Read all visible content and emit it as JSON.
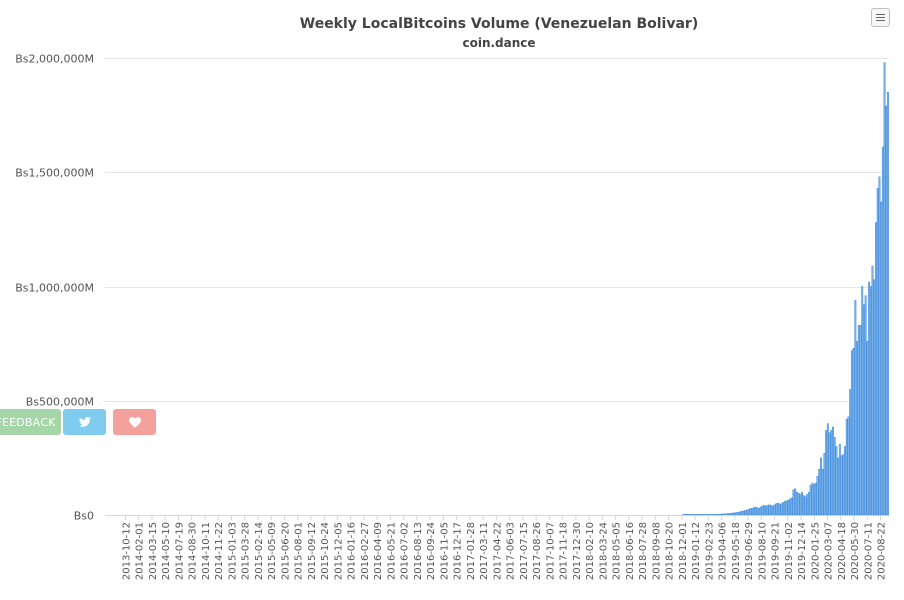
{
  "chart_data": {
    "type": "bar",
    "title": "Weekly LocalBitcoins Volume (Venezuelan Bolivar)",
    "subtitle": "coin.dance",
    "xlabel": "",
    "ylabel": "",
    "ylim": [
      0,
      2000000000
    ],
    "y_ticks": [
      {
        "value": 0,
        "label": "Bs0"
      },
      {
        "value": 500000000,
        "label": "Bs500,000M"
      },
      {
        "value": 1000000000,
        "label": "Bs1,000,000M"
      },
      {
        "value": 1500000000,
        "label": "Bs1,500,000M"
      },
      {
        "value": 2000000000,
        "label": "Bs2,000,000M"
      }
    ],
    "x_tick_labels": [
      "2013-10-12",
      "2014-02-01",
      "2014-03-15",
      "2014-05-10",
      "2014-07-19",
      "2014-08-30",
      "2014-10-11",
      "2014-11-22",
      "2015-01-03",
      "2015-03-28",
      "2015-02-14",
      "2015-05-09",
      "2015-06-20",
      "2015-08-01",
      "2015-09-12",
      "2015-10-24",
      "2015-12-05",
      "2016-01-16",
      "2016-02-27",
      "2016-04-09",
      "2016-05-21",
      "2016-07-02",
      "2016-08-13",
      "2016-09-24",
      "2016-11-05",
      "2016-12-17",
      "2017-01-28",
      "2017-03-11",
      "2017-04-22",
      "2017-06-03",
      "2017-07-15",
      "2017-08-26",
      "2017-10-07",
      "2017-11-18",
      "2017-12-30",
      "2018-02-10",
      "2018-03-24",
      "2018-05-05",
      "2018-06-16",
      "2018-07-28",
      "2018-09-08",
      "2018-10-20",
      "2018-12-01",
      "2019-01-12",
      "2019-02-23",
      "2019-04-06",
      "2019-05-18",
      "2019-06-29",
      "2019-08-10",
      "2019-09-21",
      "2019-11-02",
      "2019-12-14",
      "2020-01-25",
      "2020-03-07",
      "2020-04-18",
      "2020-05-30",
      "2020-07-11",
      "2020-08-22"
    ],
    "x_start_date": "2013-10-12",
    "x_end_date": "2020-09-26",
    "bar_color": "#7cb5ec",
    "bar_edge_color": "#2f7ed8",
    "grid": true,
    "legend": "none",
    "series": [
      {
        "values": [
          0,
          0,
          0,
          0,
          0,
          0,
          0,
          0,
          0,
          0,
          0,
          0,
          0,
          0,
          0,
          0,
          0,
          0,
          0,
          0,
          0,
          0,
          0,
          0,
          0,
          0,
          0,
          0,
          0,
          0,
          0,
          0,
          0,
          0,
          0,
          0,
          0,
          0,
          0,
          0,
          0,
          0,
          0,
          0,
          0,
          0,
          0,
          0,
          0,
          0,
          0,
          0,
          0,
          0,
          0,
          0,
          0,
          0,
          0,
          0,
          0,
          0,
          0,
          0,
          0,
          0,
          0,
          0,
          0,
          0,
          0,
          0,
          0,
          0,
          0,
          0,
          0,
          0,
          0,
          0,
          0,
          0,
          0,
          0,
          0,
          0,
          0,
          0,
          0,
          0,
          0,
          0,
          0,
          0,
          0,
          0,
          0,
          0,
          0,
          0,
          0,
          0,
          0,
          0,
          0,
          0,
          0,
          0,
          0,
          0,
          0,
          0,
          0,
          0,
          0,
          0,
          0,
          0,
          0,
          0,
          0,
          0,
          0,
          0,
          0,
          0,
          0,
          0,
          0,
          0,
          0,
          0,
          0,
          0,
          0,
          0,
          0,
          0,
          0,
          0,
          0,
          0,
          0,
          0,
          0,
          0,
          0,
          0,
          0,
          0,
          0,
          0,
          0,
          0,
          0,
          0,
          0,
          0,
          0,
          0,
          0,
          0,
          0,
          0,
          0,
          0,
          0,
          0,
          0,
          0,
          0,
          0,
          0,
          0,
          0,
          0,
          0,
          0,
          0,
          0,
          0,
          0,
          0,
          0,
          0,
          0,
          0,
          0,
          0,
          0,
          0,
          0,
          0,
          0,
          0,
          0,
          0,
          0,
          0,
          0,
          0,
          0,
          0,
          0,
          0,
          0,
          0,
          0,
          0,
          0,
          0,
          0,
          0,
          0,
          0,
          0,
          0,
          0,
          0,
          0,
          0,
          0,
          0,
          0,
          0,
          0,
          0,
          0,
          0,
          0,
          0,
          0,
          0,
          0,
          0,
          0,
          0,
          0,
          0,
          0,
          0,
          0,
          0,
          0,
          0,
          0,
          0,
          0,
          0,
          0,
          0,
          0,
          0,
          0,
          0,
          0,
          0,
          0,
          0,
          0,
          0,
          0,
          0,
          0,
          0,
          0,
          0,
          0,
          0,
          0,
          0,
          0,
          0,
          0,
          0,
          0,
          0,
          0,
          0,
          0,
          0,
          0,
          0,
          0,
          0,
          0,
          0,
          0,
          0,
          0,
          0,
          0,
          0,
          0,
          0,
          0,
          0,
          0,
          0,
          0,
          0,
          0,
          0,
          0,
          0,
          0,
          0,
          0,
          0,
          0,
          0,
          0,
          0,
          0,
          0,
          0,
          0,
          0,
          0,
          0,
          0,
          0,
          0,
          0,
          0,
          0,
          0,
          0,
          0,
          0,
          0,
          0,
          0,
          0,
          0,
          0,
          500000,
          500000,
          600000,
          600000,
          700000,
          800000,
          900000,
          1000000,
          1000000,
          1200000,
          1300000,
          1400000,
          1500000,
          1600000,
          1800000,
          2000000,
          2200000,
          2400000,
          2700000,
          3000000,
          3300000,
          3700000,
          4100000,
          4600000,
          5100000,
          5700000,
          6400000,
          7000000,
          8000000,
          9000000,
          10000000,
          11000000,
          12000000,
          14000000,
          16000000,
          18000000,
          20000000,
          22000000,
          25000000,
          28000000,
          30000000,
          33000000,
          35000000,
          32000000,
          30000000,
          35000000,
          40000000,
          42000000,
          40000000,
          42000000,
          45000000,
          42000000,
          40000000,
          45000000,
          50000000,
          52000000,
          48000000,
          50000000,
          55000000,
          60000000,
          62000000,
          65000000,
          70000000,
          75000000,
          110000000,
          115000000,
          100000000,
          95000000,
          90000000,
          100000000,
          85000000,
          80000000,
          90000000,
          100000000,
          130000000,
          140000000,
          135000000,
          140000000,
          170000000,
          200000000,
          250000000,
          200000000,
          270000000,
          370000000,
          400000000,
          360000000,
          370000000,
          385000000,
          340000000,
          300000000,
          250000000,
          310000000,
          260000000,
          265000000,
          300000000,
          420000000,
          430000000,
          550000000,
          720000000,
          730000000,
          940000000,
          760000000,
          830000000,
          830000000,
          1000000000,
          920000000,
          960000000,
          760000000,
          1020000000,
          1000000000,
          1090000000,
          1030000000,
          1280000000,
          1430000000,
          1480000000,
          1370000000,
          1610000000,
          1980000000,
          1790000000,
          1850000000
        ]
      }
    ]
  },
  "ui": {
    "menu_icon": "hamburger-icon",
    "feedback_label": "FEEDBACK",
    "twitter_icon": "twitter-bird-icon",
    "heart_icon": "heart-icon"
  }
}
